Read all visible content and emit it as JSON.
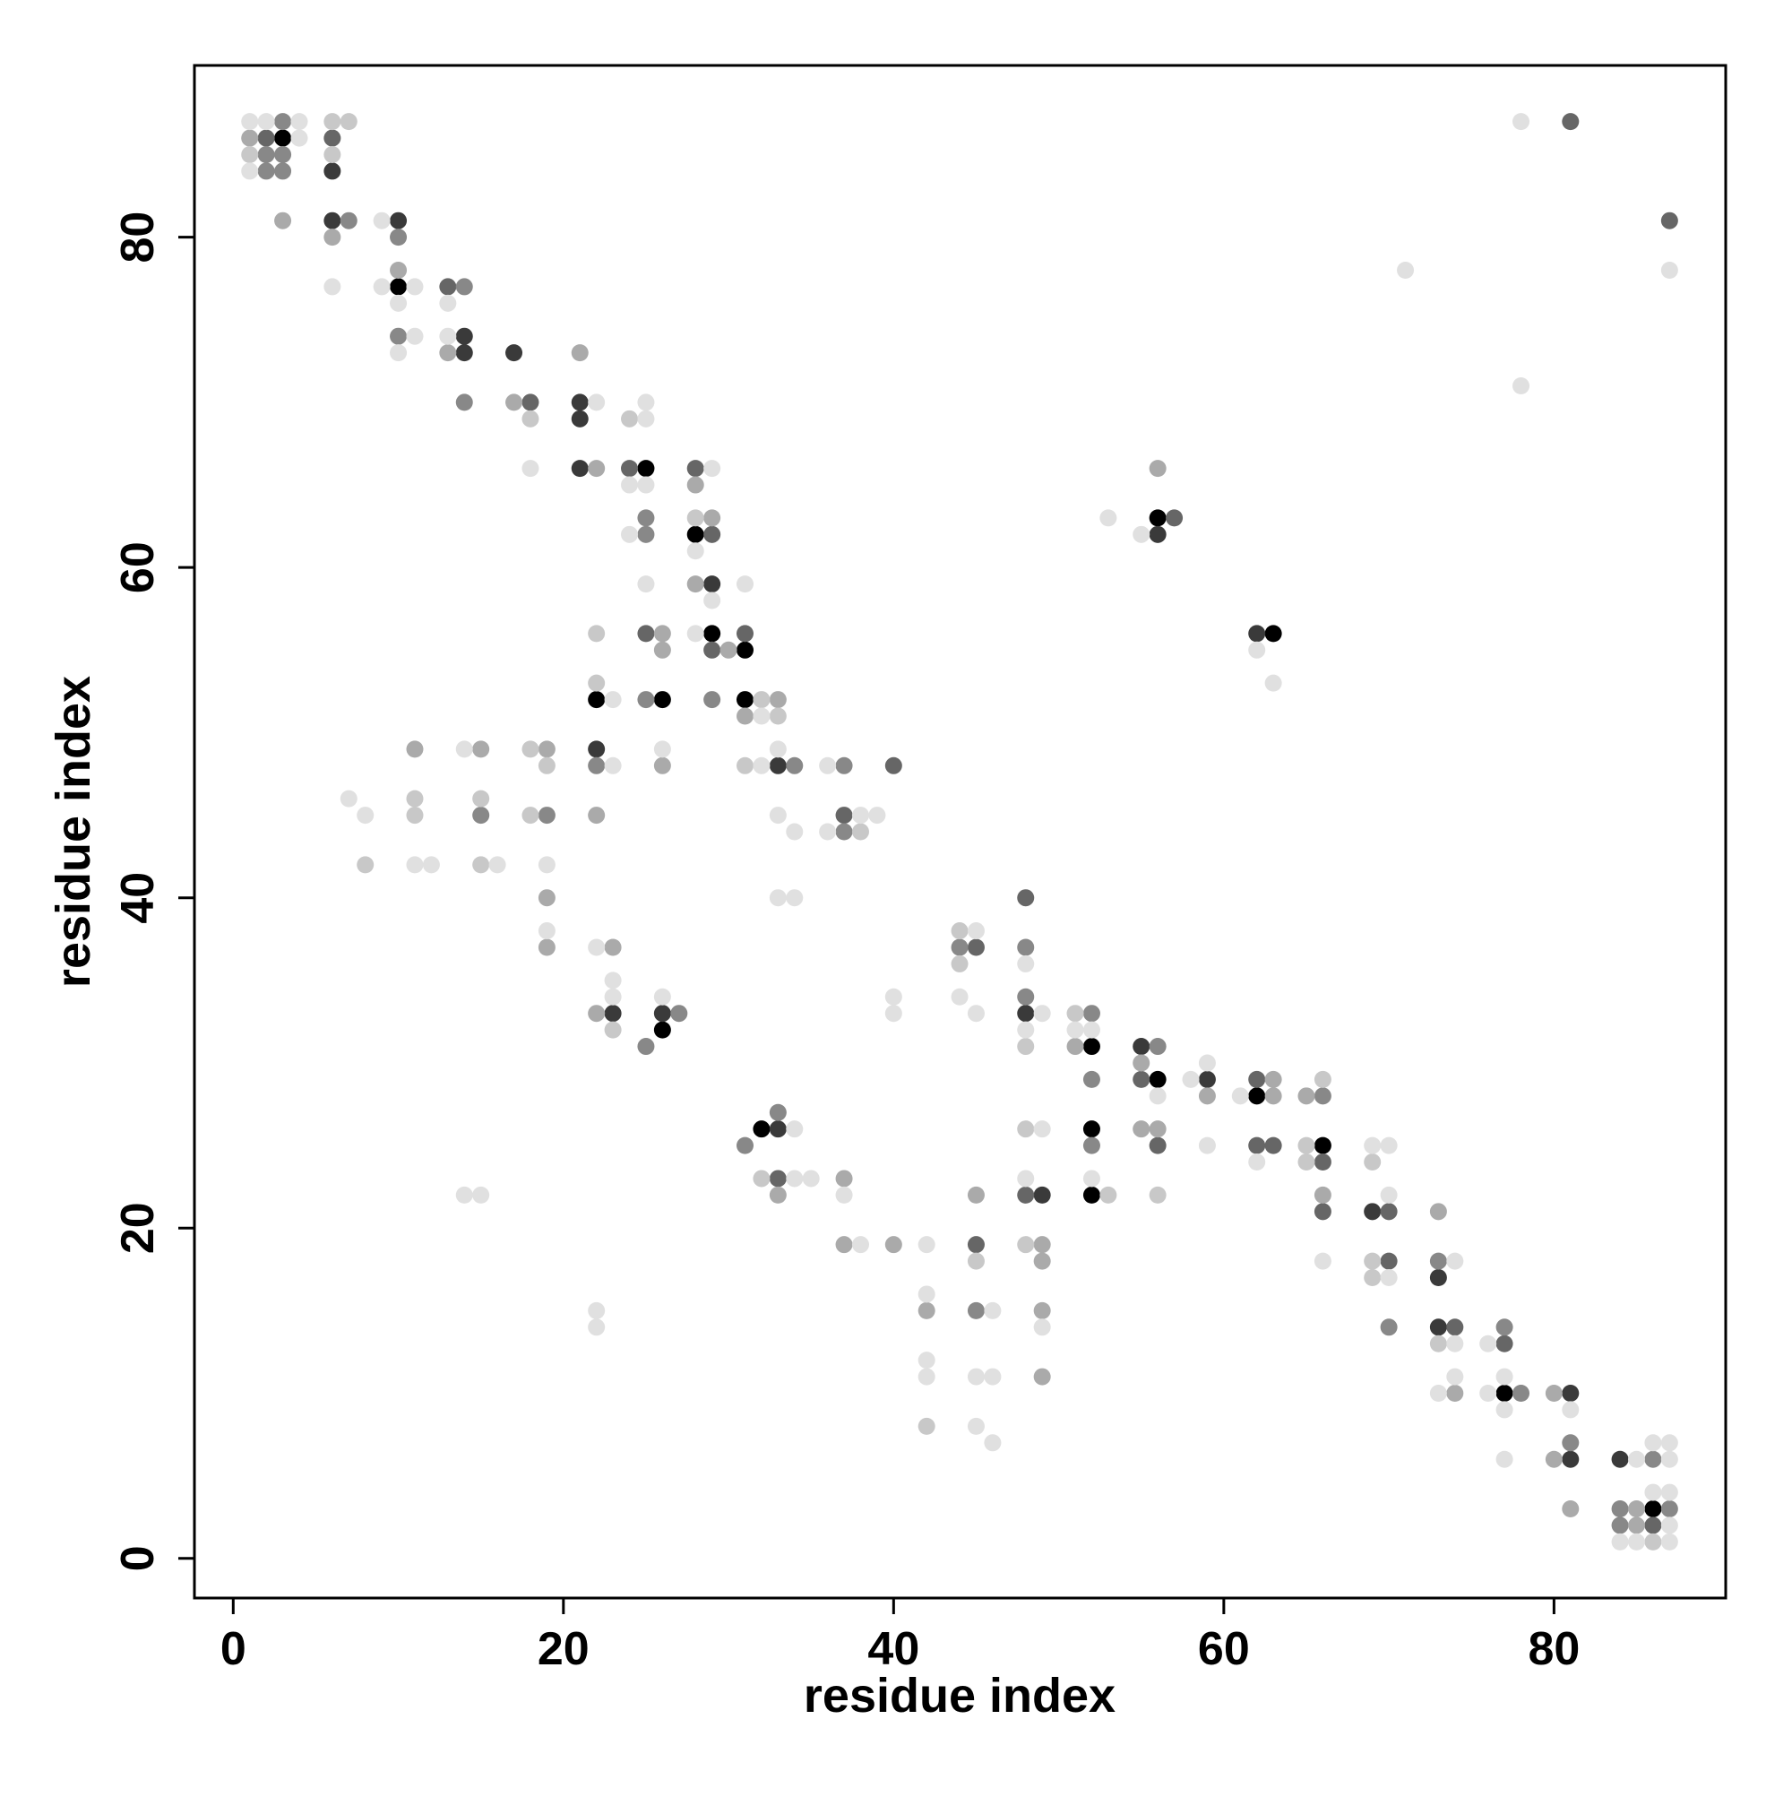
{
  "chart_data": {
    "type": "scatter",
    "xlabel": "residue index",
    "ylabel": "residue index",
    "xlim": [
      -2.35,
      90.4
    ],
    "ylim": [
      -2.4,
      90.4
    ],
    "xticks": [
      0,
      20,
      40,
      60,
      80
    ],
    "yticks": [
      0,
      20,
      40,
      60,
      80
    ],
    "grid": false,
    "series": [
      {
        "color": "#000000",
        "x": [
          3,
          10,
          25,
          56,
          28,
          29,
          63,
          31,
          22,
          26,
          31,
          26,
          52,
          56,
          62,
          32,
          52,
          66,
          52,
          77,
          86
        ],
        "values": [
          86,
          77,
          66,
          63,
          62,
          56,
          56,
          55,
          52,
          52,
          52,
          32,
          31,
          29,
          28,
          26,
          26,
          25,
          22,
          10,
          3
        ]
      },
      {
        "color": "#3a3a3a",
        "x": [
          6,
          6,
          10,
          14,
          14,
          17,
          21,
          21,
          21,
          56,
          29,
          62,
          22,
          33,
          23,
          26,
          48,
          55,
          59,
          33,
          49,
          69,
          73,
          73,
          81,
          81,
          84
        ],
        "values": [
          84,
          81,
          81,
          74,
          73,
          73,
          70,
          69,
          66,
          62,
          59,
          56,
          49,
          48,
          33,
          33,
          33,
          31,
          29,
          26,
          22,
          21,
          17,
          14,
          10,
          6,
          6
        ]
      },
      {
        "color": "#666666",
        "x": [
          2,
          6,
          81,
          87,
          13,
          18,
          24,
          28,
          57,
          29,
          25,
          31,
          29,
          40,
          37,
          48,
          45,
          55,
          62,
          56,
          62,
          63,
          66,
          33,
          48,
          66,
          70,
          45,
          70,
          74,
          77,
          86
        ],
        "values": [
          86,
          86,
          87,
          81,
          77,
          70,
          66,
          66,
          63,
          62,
          56,
          56,
          55,
          48,
          45,
          40,
          37,
          29,
          29,
          25,
          25,
          25,
          24,
          23,
          22,
          21,
          21,
          19,
          18,
          14,
          13,
          2
        ]
      },
      {
        "color": "#888888",
        "x": [
          3,
          2,
          3,
          2,
          3,
          7,
          10,
          14,
          10,
          14,
          25,
          25,
          25,
          29,
          22,
          34,
          37,
          15,
          19,
          37,
          44,
          48,
          48,
          27,
          52,
          25,
          56,
          52,
          66,
          33,
          31,
          52,
          73,
          45,
          70,
          77,
          78,
          81,
          86,
          84,
          87,
          84
        ],
        "values": [
          87,
          85,
          85,
          84,
          84,
          81,
          80,
          77,
          74,
          70,
          63,
          62,
          52,
          52,
          48,
          48,
          48,
          45,
          45,
          44,
          37,
          37,
          34,
          33,
          33,
          31,
          31,
          29,
          28,
          27,
          25,
          25,
          18,
          15,
          14,
          14,
          10,
          7,
          6,
          3,
          3,
          2
        ]
      },
      {
        "color": "#aaaaaa",
        "x": [
          1,
          3,
          6,
          10,
          13,
          21,
          17,
          22,
          28,
          29,
          28,
          26,
          26,
          30,
          33,
          31,
          11,
          15,
          19,
          26,
          22,
          19,
          19,
          23,
          22,
          51,
          55,
          59,
          63,
          63,
          65,
          55,
          56,
          37,
          33,
          45,
          66,
          73,
          37,
          40,
          49,
          49,
          42,
          49,
          49,
          74,
          80,
          80,
          81,
          85,
          85,
          56
        ],
        "values": [
          86,
          81,
          80,
          78,
          73,
          73,
          70,
          66,
          65,
          63,
          59,
          56,
          55,
          55,
          52,
          51,
          49,
          49,
          49,
          48,
          45,
          40,
          37,
          37,
          33,
          31,
          30,
          28,
          29,
          28,
          28,
          26,
          26,
          23,
          22,
          22,
          22,
          21,
          19,
          19,
          19,
          18,
          15,
          15,
          11,
          10,
          10,
          6,
          3,
          3,
          2,
          66
        ]
      },
      {
        "color": "#c8c8c8",
        "x": [
          1,
          6,
          7,
          6,
          18,
          24,
          28,
          22,
          22,
          32,
          33,
          18,
          19,
          31,
          11,
          15,
          11,
          18,
          38,
          8,
          15,
          44,
          44,
          23,
          48,
          51,
          65,
          65,
          69,
          32,
          53,
          56,
          48,
          45,
          69,
          69,
          73,
          42,
          86,
          66,
          48
        ],
        "values": [
          85,
          87,
          87,
          85,
          69,
          69,
          63,
          56,
          53,
          52,
          51,
          49,
          48,
          48,
          46,
          46,
          45,
          45,
          44,
          42,
          42,
          38,
          36,
          32,
          31,
          33,
          25,
          24,
          24,
          23,
          22,
          22,
          19,
          18,
          18,
          17,
          13,
          8,
          1,
          29,
          26
        ]
      },
      {
        "color": "#e0e0e0",
        "x": [
          1,
          2,
          4,
          4,
          1,
          6,
          9,
          11,
          9,
          10,
          13,
          11,
          13,
          10,
          78,
          71,
          87,
          78,
          22,
          25,
          25,
          18,
          29,
          24,
          25,
          53,
          24,
          55,
          28,
          25,
          31,
          29,
          28,
          62,
          23,
          32,
          63,
          14,
          26,
          33,
          23,
          32,
          36,
          7,
          8,
          33,
          38,
          39,
          34,
          36,
          11,
          12,
          16,
          19,
          33,
          34,
          19,
          45,
          22,
          48,
          23,
          23,
          26,
          40,
          44,
          40,
          45,
          49,
          48,
          51,
          52,
          59,
          58,
          56,
          61,
          34,
          49,
          59,
          69,
          70,
          62,
          34,
          35,
          48,
          52,
          14,
          15,
          37,
          70,
          38,
          42,
          66,
          74,
          70,
          42,
          46,
          22,
          22,
          49,
          74,
          76,
          42,
          42,
          45,
          46,
          74,
          77,
          73,
          76,
          77,
          81,
          45,
          46,
          86,
          87,
          77,
          85,
          87,
          86,
          87,
          87,
          84,
          85,
          87
        ],
        "values": [
          87,
          87,
          87,
          86,
          84,
          77,
          77,
          77,
          81,
          76,
          76,
          74,
          74,
          73,
          87,
          78,
          78,
          71,
          70,
          70,
          69,
          66,
          66,
          65,
          65,
          63,
          62,
          62,
          61,
          59,
          59,
          58,
          56,
          55,
          52,
          51,
          53,
          49,
          49,
          49,
          48,
          48,
          48,
          46,
          45,
          45,
          45,
          45,
          44,
          44,
          42,
          42,
          42,
          42,
          40,
          40,
          38,
          38,
          37,
          36,
          35,
          34,
          34,
          34,
          34,
          33,
          33,
          33,
          32,
          32,
          32,
          30,
          29,
          28,
          28,
          26,
          26,
          25,
          25,
          25,
          24,
          23,
          23,
          23,
          23,
          22,
          22,
          22,
          22,
          19,
          19,
          18,
          18,
          17,
          16,
          15,
          15,
          14,
          14,
          13,
          13,
          12,
          11,
          11,
          11,
          11,
          11,
          10,
          10,
          9,
          9,
          8,
          7,
          7,
          7,
          6,
          6,
          6,
          4,
          4,
          2,
          1,
          1,
          1
        ]
      }
    ]
  }
}
